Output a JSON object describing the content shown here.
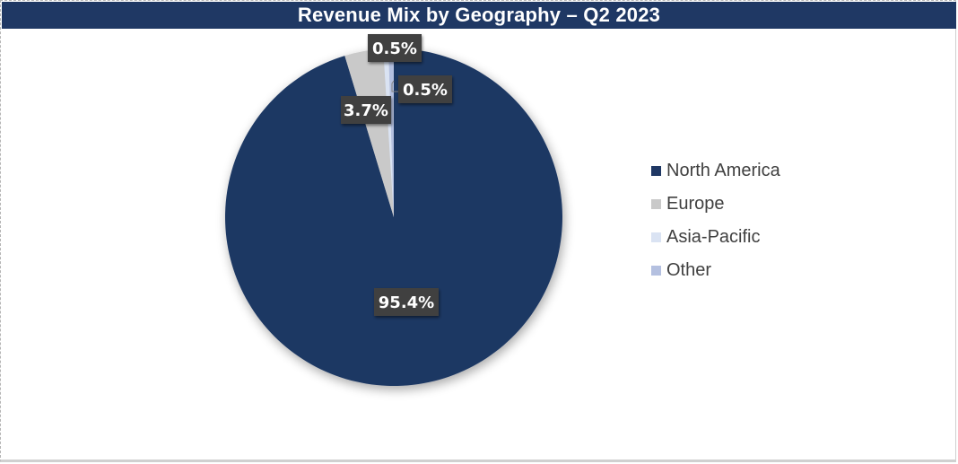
{
  "chart_data": {
    "type": "pie",
    "title": "Revenue Mix by Geography – Q2 2023",
    "categories": [
      "North America",
      "Europe",
      "Asia-Pacific",
      "Other"
    ],
    "values": [
      95.4,
      3.7,
      0.5,
      0.5
    ],
    "value_labels": [
      "95.4%",
      "3.7%",
      "0.5%",
      "0.5%"
    ],
    "colors": [
      "#1f3864",
      "#c9c9c9",
      "#dae3f3",
      "#b4c0e0"
    ],
    "legend_position": "right",
    "start_angle_deg": 0,
    "direction": "clockwise"
  },
  "title": "Revenue Mix by Geography – Q2 2023",
  "legend": {
    "items": [
      {
        "label": "North America",
        "color": "#1f3864"
      },
      {
        "label": "Europe",
        "color": "#c9c9c9"
      },
      {
        "label": "Asia-Pacific",
        "color": "#dae3f3"
      },
      {
        "label": "Other",
        "color": "#b4c0e0"
      }
    ]
  },
  "labels": {
    "north_america": "95.4%",
    "europe": "3.7%",
    "asia_pacific": "0.5%",
    "other": "0.5%"
  },
  "colors": {
    "title_bg": "#1f3864",
    "label_bg": "#404040"
  }
}
